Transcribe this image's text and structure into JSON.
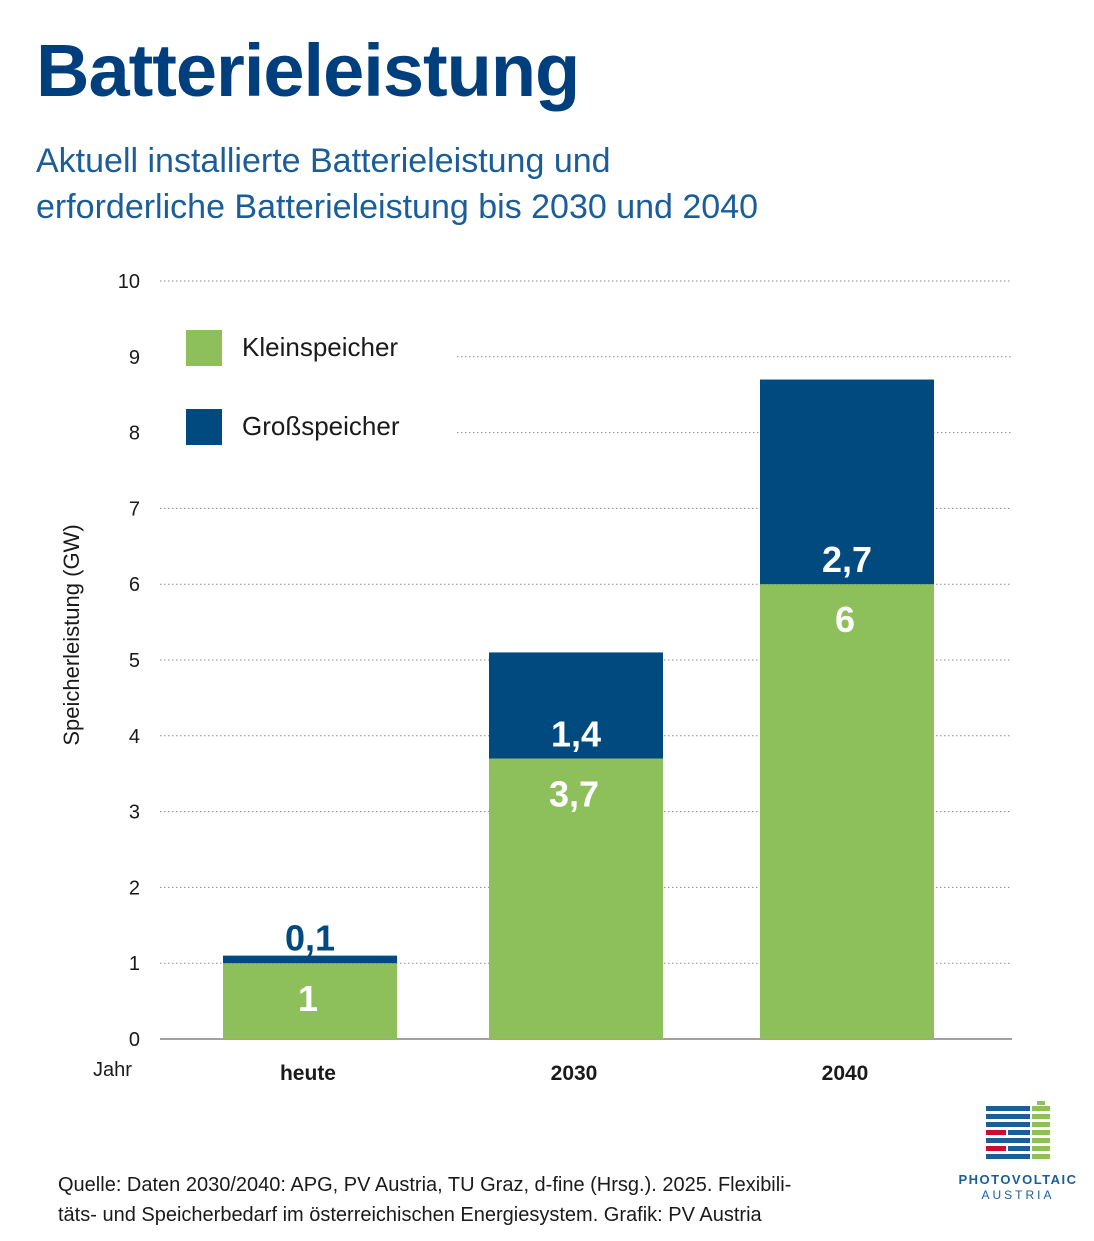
{
  "title": "Batterieleistung",
  "subtitle_line1": "Aktuell installierte Batterieleistung und",
  "subtitle_line2": "erforderliche Batterieleistung bis 2030 und 2040",
  "source_line1": "Quelle: Daten 2030/2040: APG, PV Austria, TU Graz, d-fine (Hrsg.). 2025. Flexibili-",
  "source_line2": "täts- und Speicherbedarf im österreichischen Energiesystem. Grafik: PV Austria",
  "logo": {
    "line1": "PHOTOVOLTAIC",
    "line2": "AUSTRIA"
  },
  "colors": {
    "klein": "#8dc05a",
    "gross": "#004a80",
    "axis_text": "#1a1a1a",
    "grid": "#8a8a8a"
  },
  "chart_data": {
    "type": "bar",
    "stacked": true,
    "categories": [
      "heute",
      "2030",
      "2040"
    ],
    "series": [
      {
        "name": "Kleinspeicher",
        "values": [
          1,
          3.7,
          6
        ],
        "labels": [
          "1",
          "3,7",
          "6"
        ]
      },
      {
        "name": "Großspeicher",
        "values": [
          0.1,
          1.4,
          2.7
        ],
        "labels": [
          "0,1",
          "1,4",
          "2,7"
        ]
      }
    ],
    "ylabel": "Speicherleistung (GW)",
    "xlabel": "Jahr",
    "ylim": [
      0,
      10
    ],
    "yticks": [
      0,
      1,
      2,
      3,
      4,
      5,
      6,
      7,
      8,
      9,
      10
    ],
    "grid": true,
    "legend_position": "top-left"
  }
}
